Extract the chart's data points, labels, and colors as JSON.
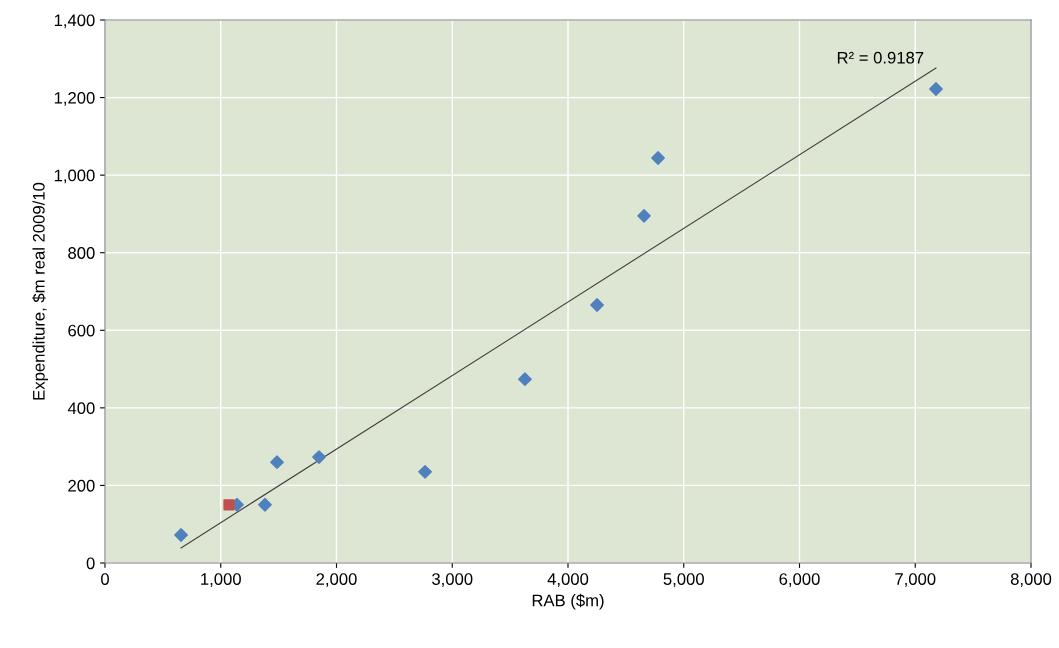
{
  "chart_data": {
    "type": "scatter",
    "xlabel": "RAB ($m)",
    "ylabel": "Expenditure, $m real 2009/10",
    "annotations": [
      "R² = 0.9187"
    ],
    "series": [
      {
        "color": "#4f81bd",
        "marker": "diamond",
        "x": [
          657,
          1140,
          1382,
          1486,
          1849,
          2765,
          3628,
          4251,
          4657,
          4778,
          7179
        ],
        "values": [
          72,
          150,
          150,
          260,
          273,
          235,
          474,
          665,
          895,
          1044,
          1222
        ]
      },
      {
        "color": "#c0504d",
        "marker": "square",
        "x": [
          1071
        ],
        "values": [
          150
        ]
      },
      {
        "type": "line",
        "color": "#404040",
        "marker": "none",
        "x": [
          657,
          7179
        ],
        "values": [
          39,
          1276
        ]
      }
    ],
    "xlim": [
      0,
      8000
    ],
    "xticks": [
      {
        "value": 0,
        "label": "0"
      },
      {
        "value": 1000,
        "label": "1,000"
      },
      {
        "value": 2000,
        "label": "2,000"
      },
      {
        "value": 3000,
        "label": "3,000"
      },
      {
        "value": 4000,
        "label": "4,000"
      },
      {
        "value": 5000,
        "label": "5,000"
      },
      {
        "value": 6000,
        "label": "6,000"
      },
      {
        "value": 7000,
        "label": "7,000"
      },
      {
        "value": 8000,
        "label": "8,000"
      }
    ],
    "ylim": [
      0,
      1400
    ],
    "yticks": [
      {
        "value": 0,
        "label": "0"
      },
      {
        "value": 200,
        "label": "200"
      },
      {
        "value": 400,
        "label": "400"
      },
      {
        "value": 600,
        "label": "600"
      },
      {
        "value": 800,
        "label": "800"
      },
      {
        "value": 1000,
        "label": "1,000"
      },
      {
        "value": 1200,
        "label": "1,200"
      },
      {
        "value": 1400,
        "label": "1,400"
      }
    ],
    "grid": true
  }
}
